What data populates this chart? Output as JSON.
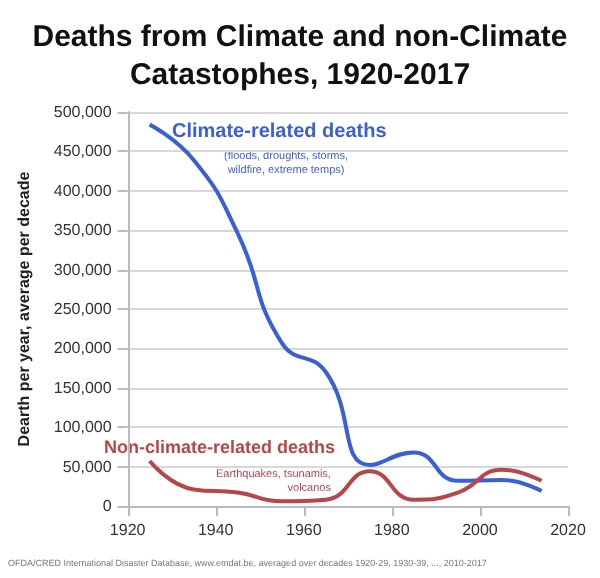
{
  "chart_data": {
    "type": "line",
    "title": "Deaths from Climate and non-Climate\nCatastophes, 1920-2017",
    "ylabel": "Dearth per year, average per decade",
    "x": [
      1925,
      1935,
      1945,
      1955,
      1965,
      1975,
      1985,
      1995,
      2005,
      2014
    ],
    "series": [
      {
        "name": "Climate-related deaths",
        "color": "#3b5fd4",
        "values": [
          484000,
          439000,
          346000,
          207000,
          170000,
          52000,
          68000,
          32000,
          33000,
          19000
        ]
      },
      {
        "name": "Non-climate-related deaths",
        "color": "#b5464a",
        "values": [
          57000,
          21000,
          17000,
          6000,
          8000,
          44000,
          8000,
          17000,
          46000,
          32000
        ]
      }
    ],
    "annotations": [
      "(floods, droughts, storms,\nwildfire, extreme temps)",
      "Earthquakes, tsunamis,\nvolcanos",
      "OFDA/CRED International Disaster Database, www.emdat.be, averaged over decades 1920-29, 1930-39, ..., 2010-2017"
    ],
    "xlim": [
      1920,
      2020
    ],
    "xticks": [
      1920,
      1940,
      1960,
      1980,
      2000,
      2020
    ],
    "ylim": [
      0,
      500000
    ],
    "yticks": [
      0,
      {
        "value": 50000,
        "label": "50,000"
      },
      {
        "value": 100000,
        "label": "100,000"
      },
      {
        "value": 150000,
        "label": "150,000"
      },
      {
        "value": 200000,
        "label": "200,000"
      },
      {
        "value": 250000,
        "label": "250,000"
      },
      {
        "value": 300000,
        "label": "300,000"
      },
      {
        "value": 350000,
        "label": "350,000"
      },
      {
        "value": 400000,
        "label": "400,000"
      },
      {
        "value": 450000,
        "label": "450,000"
      },
      {
        "value": 500000,
        "label": "500,000"
      }
    ],
    "grid": "y",
    "legend": false,
    "marker": "none",
    "line_style": "solid"
  }
}
